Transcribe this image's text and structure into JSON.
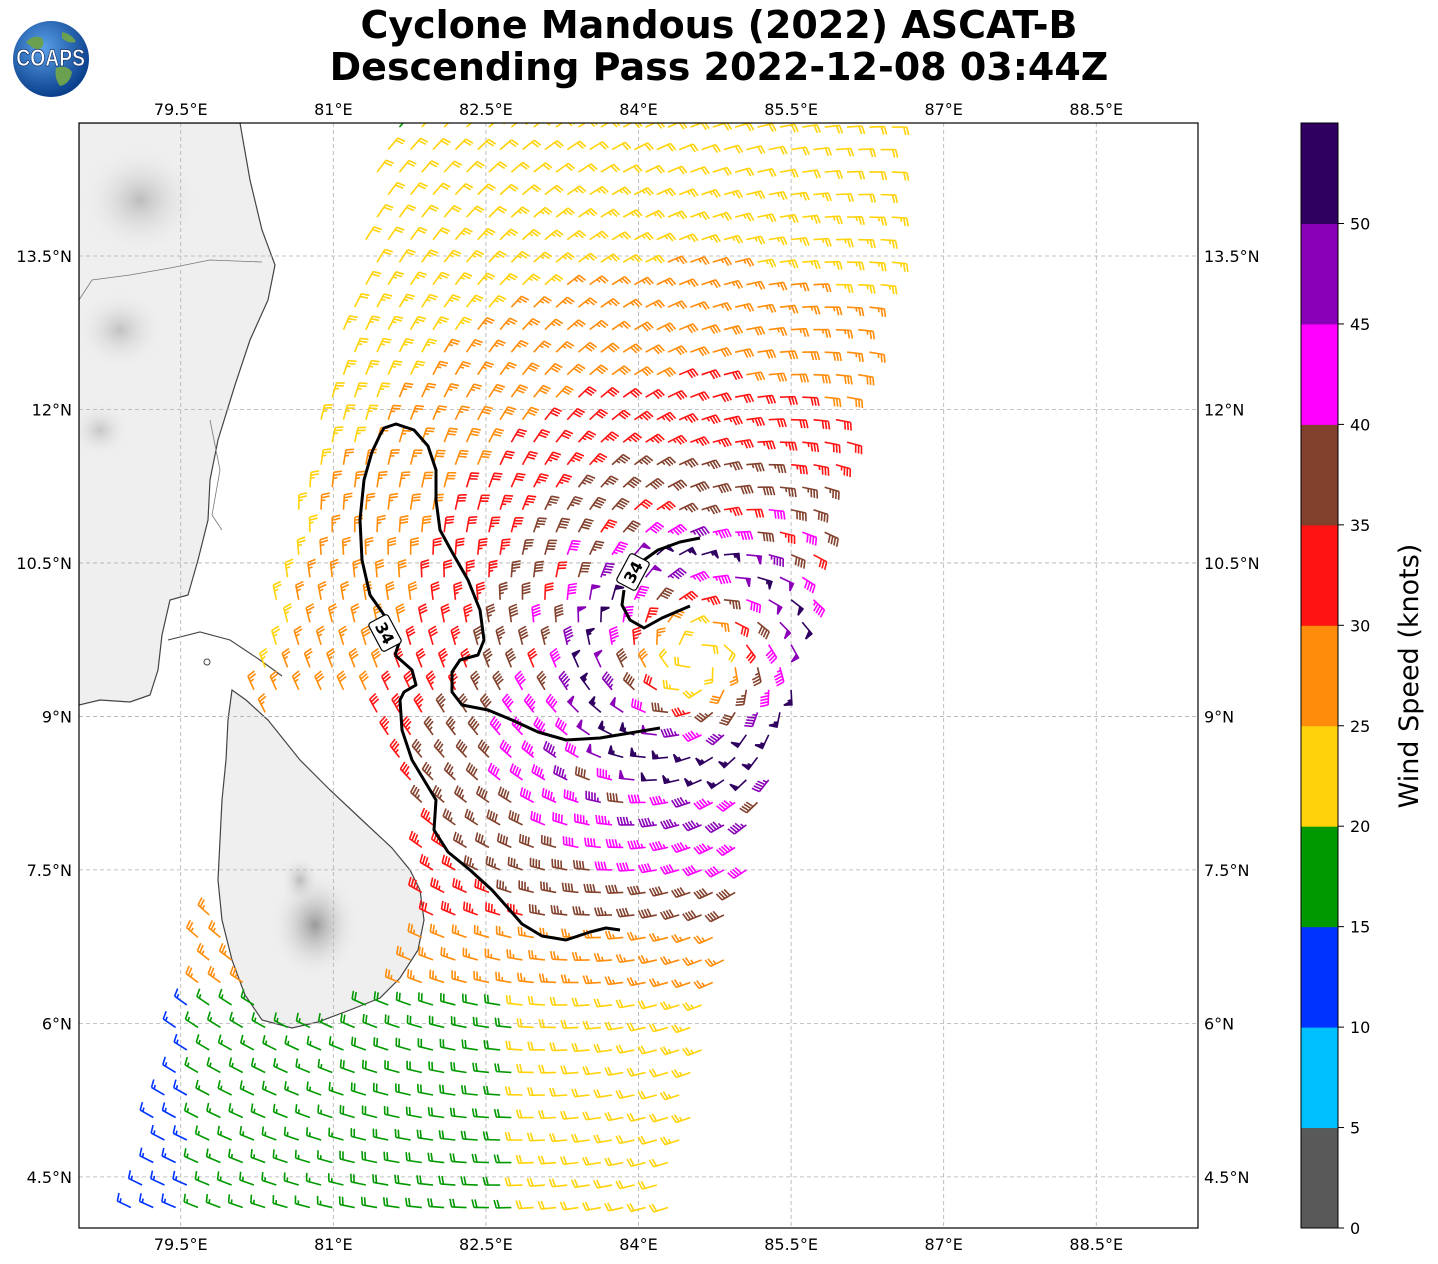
{
  "title": {
    "line1": "Cyclone Mandous (2022) ASCAT-B",
    "line2": "Descending Pass 2022-12-08 03:44Z"
  },
  "logo": {
    "text": "COAPS",
    "icon": "globe-icon"
  },
  "map": {
    "lon_range": [
      78.5,
      89.5
    ],
    "lat_range": [
      4.0,
      14.8
    ],
    "lon_ticks": [
      "79.5°E",
      "81°E",
      "82.5°E",
      "84°E",
      "85.5°E",
      "87°E",
      "88.5°E"
    ],
    "lat_ticks": [
      "4.5°N",
      "6°N",
      "7.5°N",
      "9°N",
      "10.5°N",
      "12°N",
      "13.5°N"
    ],
    "grid": true,
    "contour_label": "34",
    "contour_label_2": "34"
  },
  "colorbar": {
    "label": "Wind Speed (knots)",
    "ticks": [
      "0",
      "5",
      "10",
      "15",
      "20",
      "25",
      "30",
      "35",
      "40",
      "45",
      "50"
    ],
    "colors": [
      "#595959",
      "#00bfff",
      "#0033ff",
      "#009900",
      "#ffd20a",
      "#ff8c0a",
      "#ff1414",
      "#82412d",
      "#ff00ff",
      "#8a00b8",
      "#300060"
    ]
  },
  "chart_data": {
    "type": "wind barb map",
    "x_axis": "longitude",
    "y_axis": "latitude",
    "levels_knots": [
      0,
      5,
      10,
      15,
      20,
      25,
      30,
      35,
      40,
      45,
      50,
      55
    ],
    "contour_knots": 34
  }
}
